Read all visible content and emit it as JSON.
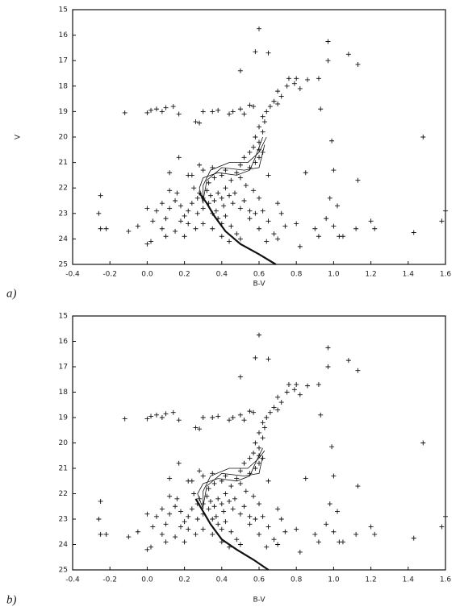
{
  "chart_data": [
    {
      "type": "scatter",
      "panel_label": "a)",
      "x_label": "B-V",
      "y_label": "V",
      "xlim": [
        -0.4,
        1.6
      ],
      "ylim": [
        25,
        15
      ],
      "xticks": [
        -0.4,
        -0.2,
        {
          "value": 0,
          "label": "0.0"
        },
        0.2,
        0.4,
        0.6,
        0.8,
        {
          "value": 1,
          "label": "1.0"
        },
        1.2,
        1.4,
        1.6
      ],
      "yticks": [
        15,
        16,
        17,
        18,
        19,
        20,
        21,
        22,
        23,
        24,
        25
      ],
      "color": "#111",
      "x": [
        0.6,
        0.58,
        0.65,
        0.97,
        1.08,
        0.97,
        1.13,
        0.5,
        0.76,
        0.8,
        0.86,
        0.92,
        0.79,
        0.75,
        0.82,
        0.7,
        0.72,
        0.68,
        0.66,
        0.7,
        0.64,
        0.62,
        0.63,
        0.6,
        0.62,
        0.58,
        0.6,
        0.57,
        0.55,
        0.6,
        0.52,
        0.93,
        0.57,
        0.55,
        0.99,
        1.48,
        0.52,
        -0.12,
        0.0,
        0.02,
        0.05,
        0.08,
        0.1,
        0.14,
        0.17,
        0.26,
        0.28,
        0.3,
        0.35,
        0.38,
        0.44,
        0.46,
        0.5,
        -0.25,
        -0.26,
        -0.25,
        -0.22,
        -0.1,
        -0.05,
        0.0,
        0.02,
        0.1,
        0.15,
        0.12,
        0.17,
        0.12,
        0.22,
        0.7,
        0.72,
        0.8,
        0.82,
        0.9,
        0.92,
        0.96,
        1.0,
        1.02,
        1.05,
        1.03,
        1.12,
        1.13,
        1.2,
        1.22,
        1.43,
        1.58,
        1.6,
        0.98,
        1.0,
        0.85,
        0.65,
        0.25,
        0.28,
        0.3,
        0.32,
        0.34,
        0.36,
        0.38,
        0.4,
        0.42,
        0.33,
        0.36,
        0.4,
        0.45,
        0.48,
        0.5,
        0.44,
        0.46,
        0.5,
        0.52,
        0.55,
        0.3,
        0.27,
        0.24,
        0.22,
        0.2,
        0.18,
        0.15,
        0.12,
        0.1,
        0.08,
        0.05,
        0.03,
        0.0,
        0.35,
        0.38,
        0.4,
        0.42,
        0.45,
        0.48,
        0.5,
        0.44,
        0.4,
        0.35,
        0.3,
        0.26,
        0.22,
        0.18,
        0.2,
        0.55,
        0.58,
        0.6,
        0.62,
        0.65,
        0.6,
        0.57,
        0.53,
        0.3,
        0.28,
        0.35,
        0.42,
        0.55,
        0.58,
        0.6,
        0.62,
        0.5,
        0.24,
        0.37,
        0.33,
        0.41,
        0.47,
        0.27,
        0.16,
        0.08,
        0.68,
        0.7,
        0.74,
        0.64
      ],
      "values": [
        15.75,
        16.65,
        16.7,
        16.25,
        16.75,
        17.0,
        17.15,
        17.4,
        17.7,
        17.7,
        17.75,
        17.7,
        17.9,
        18.0,
        18.1,
        18.2,
        18.4,
        18.6,
        18.8,
        18.7,
        19.0,
        19.2,
        19.4,
        19.6,
        19.8,
        20.0,
        20.2,
        20.4,
        20.6,
        20.5,
        20.8,
        18.9,
        18.8,
        18.75,
        20.15,
        20.0,
        19.1,
        19.05,
        19.05,
        18.95,
        18.9,
        19.0,
        18.85,
        18.8,
        19.1,
        19.4,
        19.45,
        19.0,
        19.0,
        18.95,
        19.1,
        19.0,
        18.9,
        22.3,
        23.0,
        23.6,
        23.6,
        23.7,
        23.5,
        24.2,
        24.1,
        23.9,
        23.7,
        21.4,
        20.8,
        22.1,
        21.5,
        22.6,
        23.0,
        23.4,
        24.3,
        23.6,
        23.9,
        23.2,
        23.5,
        22.7,
        23.9,
        23.9,
        23.6,
        21.7,
        23.3,
        23.6,
        23.75,
        23.3,
        22.9,
        22.4,
        21.3,
        21.4,
        21.5,
        22.0,
        22.2,
        22.4,
        22.1,
        22.3,
        22.5,
        22.2,
        22.4,
        22.0,
        21.8,
        21.6,
        21.5,
        21.7,
        21.4,
        21.6,
        22.3,
        22.6,
        22.8,
        22.5,
        22.9,
        22.8,
        23.0,
        22.6,
        22.9,
        23.1,
        22.7,
        22.5,
        22.8,
        23.2,
        22.6,
        22.9,
        23.3,
        22.8,
        23.0,
        23.2,
        23.4,
        23.1,
        23.5,
        23.8,
        24.0,
        24.1,
        23.9,
        23.6,
        23.4,
        23.6,
        23.4,
        23.3,
        23.9,
        23.2,
        23.0,
        23.6,
        22.9,
        23.3,
        22.4,
        22.1,
        21.9,
        21.3,
        21.1,
        21.2,
        21.3,
        21.2,
        21.0,
        20.8,
        20.6,
        21.1,
        21.5,
        22.9,
        22.6,
        22.7,
        22.2,
        22.4,
        22.2,
        23.6,
        23.8,
        24.0,
        23.5,
        24.1
      ],
      "isochrones": [
        {
          "x": [
            0.28,
            0.32,
            0.36,
            0.42,
            0.5,
            0.6,
            0.69
          ],
          "values": [
            22.2,
            22.6,
            23.1,
            23.7,
            24.2,
            24.6,
            25
          ]
        },
        {
          "x": [
            0.3,
            0.28,
            0.3,
            0.38,
            0.48,
            0.55,
            0.58,
            0.62
          ],
          "values": [
            22.6,
            22,
            21.6,
            21.4,
            21.5,
            21.3,
            20.8,
            20
          ]
        },
        {
          "x": [
            0.3,
            0.3,
            0.34,
            0.44,
            0.54,
            0.6,
            0.64
          ],
          "values": [
            22.6,
            21.9,
            21.3,
            21,
            21,
            20.6,
            20
          ]
        },
        {
          "x": [
            0.3,
            0.32,
            0.4,
            0.52,
            0.6,
            0.63
          ],
          "values": [
            22.5,
            21.7,
            21.2,
            21.3,
            21.2,
            20.3
          ]
        }
      ]
    },
    {
      "type": "scatter",
      "panel_label": "b)",
      "x_label": "B-V",
      "xlim": [
        -0.4,
        1.6
      ],
      "ylim": [
        25,
        15
      ],
      "xticks": [
        -0.4,
        -0.2,
        {
          "value": 0,
          "label": "0.0"
        },
        0.2,
        0.4,
        0.6,
        0.8,
        {
          "value": 1,
          "label": "1.0"
        },
        1.2,
        1.4,
        1.6
      ],
      "yticks": [
        15,
        16,
        17,
        18,
        19,
        20,
        21,
        22,
        23,
        24,
        25
      ],
      "color": "#111",
      "x": [
        0.6,
        0.58,
        0.65,
        0.97,
        1.08,
        0.97,
        1.13,
        0.5,
        0.76,
        0.8,
        0.86,
        0.92,
        0.79,
        0.75,
        0.82,
        0.7,
        0.72,
        0.68,
        0.66,
        0.7,
        0.64,
        0.62,
        0.63,
        0.6,
        0.62,
        0.58,
        0.6,
        0.57,
        0.55,
        0.6,
        0.52,
        0.93,
        0.57,
        0.55,
        0.99,
        1.48,
        0.52,
        -0.12,
        0.0,
        0.02,
        0.05,
        0.08,
        0.1,
        0.14,
        0.17,
        0.26,
        0.28,
        0.3,
        0.35,
        0.38,
        0.44,
        0.46,
        0.5,
        -0.25,
        -0.26,
        -0.25,
        -0.22,
        -0.1,
        -0.05,
        0.0,
        0.02,
        0.1,
        0.15,
        0.12,
        0.17,
        0.12,
        0.22,
        0.7,
        0.72,
        0.8,
        0.82,
        0.9,
        0.92,
        0.96,
        1.0,
        1.02,
        1.05,
        1.03,
        1.12,
        1.13,
        1.2,
        1.22,
        1.43,
        1.58,
        1.6,
        0.98,
        1.0,
        0.85,
        0.65,
        0.25,
        0.28,
        0.3,
        0.32,
        0.34,
        0.36,
        0.38,
        0.4,
        0.42,
        0.33,
        0.36,
        0.4,
        0.45,
        0.48,
        0.5,
        0.44,
        0.46,
        0.5,
        0.52,
        0.55,
        0.3,
        0.27,
        0.24,
        0.22,
        0.2,
        0.18,
        0.15,
        0.12,
        0.1,
        0.08,
        0.05,
        0.03,
        0.0,
        0.35,
        0.38,
        0.4,
        0.42,
        0.45,
        0.48,
        0.5,
        0.44,
        0.4,
        0.35,
        0.3,
        0.26,
        0.22,
        0.18,
        0.2,
        0.55,
        0.58,
        0.6,
        0.62,
        0.65,
        0.6,
        0.57,
        0.53,
        0.3,
        0.28,
        0.35,
        0.42,
        0.55,
        0.58,
        0.6,
        0.62,
        0.5,
        0.24,
        0.37,
        0.33,
        0.41,
        0.47,
        0.27,
        0.16,
        0.08,
        0.68,
        0.7,
        0.74,
        0.64
      ],
      "values": [
        15.75,
        16.65,
        16.7,
        16.25,
        16.75,
        17.0,
        17.15,
        17.4,
        17.7,
        17.7,
        17.75,
        17.7,
        17.9,
        18.0,
        18.1,
        18.2,
        18.4,
        18.6,
        18.8,
        18.7,
        19.0,
        19.2,
        19.4,
        19.6,
        19.8,
        20.0,
        20.2,
        20.4,
        20.6,
        20.5,
        20.8,
        18.9,
        18.8,
        18.75,
        20.15,
        20.0,
        19.1,
        19.05,
        19.05,
        18.95,
        18.9,
        19.0,
        18.85,
        18.8,
        19.1,
        19.4,
        19.45,
        19.0,
        19.0,
        18.95,
        19.1,
        19.0,
        18.9,
        22.3,
        23.0,
        23.6,
        23.6,
        23.7,
        23.5,
        24.2,
        24.1,
        23.9,
        23.7,
        21.4,
        20.8,
        22.1,
        21.5,
        22.6,
        23.0,
        23.4,
        24.3,
        23.6,
        23.9,
        23.2,
        23.5,
        22.7,
        23.9,
        23.9,
        23.6,
        21.7,
        23.3,
        23.6,
        23.75,
        23.3,
        22.9,
        22.4,
        21.3,
        21.4,
        21.5,
        22.0,
        22.2,
        22.4,
        22.1,
        22.3,
        22.5,
        22.2,
        22.4,
        22.0,
        21.8,
        21.6,
        21.5,
        21.7,
        21.4,
        21.6,
        22.3,
        22.6,
        22.8,
        22.5,
        22.9,
        22.8,
        23.0,
        22.6,
        22.9,
        23.1,
        22.7,
        22.5,
        22.8,
        23.2,
        22.6,
        22.9,
        23.3,
        22.8,
        23.0,
        23.2,
        23.4,
        23.1,
        23.5,
        23.8,
        24.0,
        24.1,
        23.9,
        23.6,
        23.4,
        23.6,
        23.4,
        23.3,
        23.9,
        23.2,
        23.0,
        23.6,
        22.9,
        23.3,
        22.4,
        22.1,
        21.9,
        21.3,
        21.1,
        21.2,
        21.3,
        21.2,
        21.0,
        20.8,
        20.6,
        21.1,
        21.5,
        22.9,
        22.6,
        22.7,
        22.2,
        22.4,
        22.2,
        23.6,
        23.8,
        24.0,
        23.5,
        24.1
      ],
      "isochrones": [
        {
          "x": [
            0.26,
            0.3,
            0.34,
            0.4,
            0.48,
            0.57,
            0.65
          ],
          "values": [
            22.2,
            22.7,
            23.2,
            23.8,
            24.2,
            24.6,
            25
          ]
        },
        {
          "x": [
            0.3,
            0.27,
            0.3,
            0.38,
            0.48,
            0.55,
            0.58,
            0.62
          ],
          "values": [
            22.6,
            22,
            21.6,
            21.4,
            21.5,
            21.3,
            20.8,
            20.2
          ]
        },
        {
          "x": [
            0.3,
            0.3,
            0.34,
            0.44,
            0.54,
            0.6,
            0.63
          ],
          "values": [
            22.6,
            21.9,
            21.3,
            21,
            21,
            20.6,
            20.3
          ]
        },
        {
          "x": [
            0.3,
            0.32,
            0.4,
            0.52,
            0.6,
            0.62
          ],
          "values": [
            22.5,
            21.7,
            21.2,
            21.3,
            21.2,
            20.5
          ]
        }
      ]
    }
  ]
}
